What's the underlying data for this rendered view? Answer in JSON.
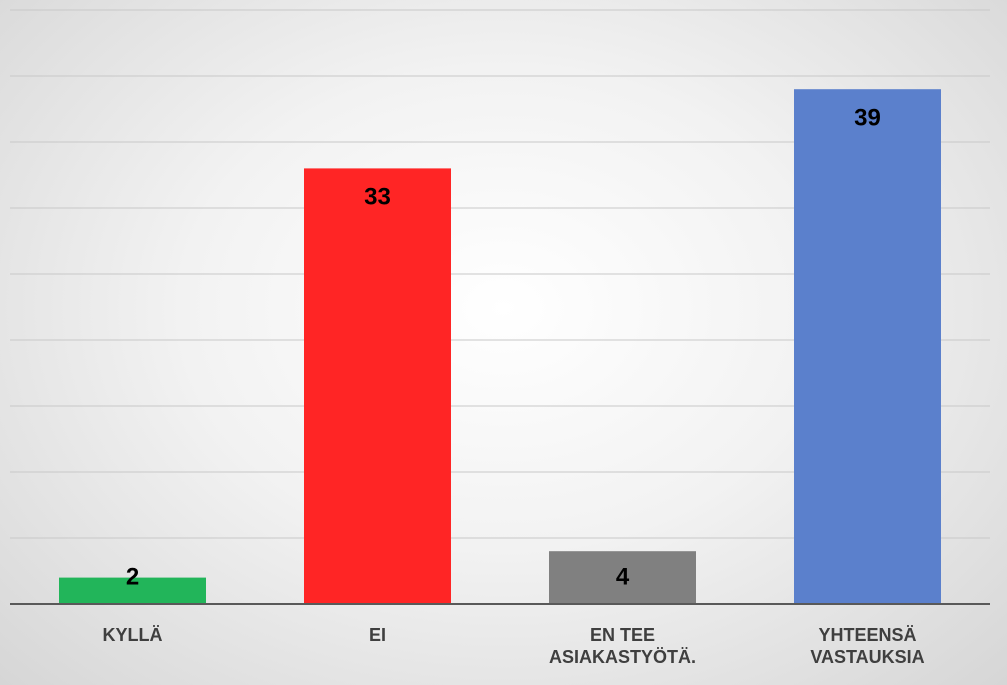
{
  "chart_data": {
    "type": "bar",
    "categories": [
      "KYLLÄ",
      "EI",
      "EN TEE ASIAKASTYÖTÄ.",
      "YHTEENSÄ VASTAUKSIA"
    ],
    "values": [
      2,
      33,
      4,
      39
    ],
    "colors": [
      "#22b55a",
      "#ff2525",
      "#808080",
      "#5b80cc"
    ],
    "ylim": [
      0,
      45
    ],
    "yticks": [
      0,
      5,
      10,
      15,
      20,
      25,
      30,
      35,
      40,
      45
    ],
    "grid": true
  }
}
